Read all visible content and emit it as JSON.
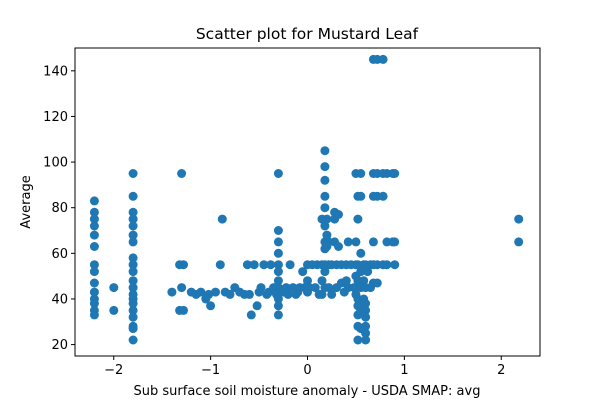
{
  "chart_data": {
    "type": "scatter",
    "title": "Scatter plot for Mustard Leaf",
    "xlabel": "Sub surface soil moisture anomaly - USDA SMAP: avg",
    "ylabel": "Average",
    "xlim": [
      -2.4,
      2.4
    ],
    "ylim": [
      15,
      150
    ],
    "xticks": [
      -2,
      -1,
      0,
      1,
      2
    ],
    "xtick_labels": [
      "−2",
      "−1",
      "0",
      "1",
      "2"
    ],
    "yticks": [
      20,
      40,
      60,
      80,
      100,
      120,
      140
    ],
    "ytick_labels": [
      "20",
      "40",
      "60",
      "80",
      "100",
      "120",
      "140"
    ],
    "grid": false,
    "legend": "none",
    "point_color": "#1f77b4",
    "points": [
      [
        -2.2,
        83
      ],
      [
        -2.2,
        78
      ],
      [
        -2.2,
        75
      ],
      [
        -2.2,
        72
      ],
      [
        -2.2,
        68
      ],
      [
        -2.2,
        63
      ],
      [
        -2.2,
        55
      ],
      [
        -2.2,
        52
      ],
      [
        -2.2,
        47
      ],
      [
        -2.2,
        43
      ],
      [
        -2.2,
        40
      ],
      [
        -2.2,
        38
      ],
      [
        -2.2,
        35
      ],
      [
        -2.2,
        33
      ],
      [
        -2.0,
        45
      ],
      [
        -2.0,
        35
      ],
      [
        -1.8,
        95
      ],
      [
        -1.8,
        85
      ],
      [
        -1.8,
        78
      ],
      [
        -1.8,
        75
      ],
      [
        -1.8,
        72
      ],
      [
        -1.8,
        68
      ],
      [
        -1.8,
        65
      ],
      [
        -1.8,
        58
      ],
      [
        -1.8,
        55
      ],
      [
        -1.8,
        52
      ],
      [
        -1.8,
        48
      ],
      [
        -1.8,
        45
      ],
      [
        -1.8,
        42
      ],
      [
        -1.8,
        40
      ],
      [
        -1.8,
        38
      ],
      [
        -1.8,
        35
      ],
      [
        -1.8,
        32
      ],
      [
        -1.8,
        28
      ],
      [
        -1.8,
        27
      ],
      [
        -1.8,
        22
      ],
      [
        -1.4,
        43
      ],
      [
        -1.3,
        95
      ],
      [
        -1.32,
        55
      ],
      [
        -1.28,
        55
      ],
      [
        -1.3,
        45
      ],
      [
        -1.32,
        35
      ],
      [
        -1.28,
        35
      ],
      [
        -1.2,
        43
      ],
      [
        -1.15,
        42
      ],
      [
        -1.1,
        43
      ],
      [
        -1.05,
        40
      ],
      [
        -1.02,
        42
      ],
      [
        -1.0,
        37
      ],
      [
        -0.95,
        43
      ],
      [
        -0.9,
        55
      ],
      [
        -0.88,
        75
      ],
      [
        -0.85,
        43
      ],
      [
        -0.8,
        42
      ],
      [
        -0.75,
        45
      ],
      [
        -0.7,
        43
      ],
      [
        -0.65,
        42
      ],
      [
        -0.62,
        55
      ],
      [
        -0.6,
        42
      ],
      [
        -0.58,
        33
      ],
      [
        -0.55,
        55
      ],
      [
        -0.52,
        37
      ],
      [
        -0.5,
        43
      ],
      [
        -0.48,
        45
      ],
      [
        -0.45,
        55
      ],
      [
        -0.42,
        42
      ],
      [
        -0.4,
        43
      ],
      [
        -0.38,
        55
      ],
      [
        -0.35,
        45
      ],
      [
        -0.32,
        42
      ],
      [
        -0.3,
        95
      ],
      [
        -0.3,
        70
      ],
      [
        -0.3,
        65
      ],
      [
        -0.3,
        60
      ],
      [
        -0.3,
        55
      ],
      [
        -0.3,
        52
      ],
      [
        -0.3,
        48
      ],
      [
        -0.3,
        45
      ],
      [
        -0.3,
        40
      ],
      [
        -0.3,
        37
      ],
      [
        -0.3,
        33
      ],
      [
        -0.28,
        43
      ],
      [
        -0.25,
        43
      ],
      [
        -0.22,
        45
      ],
      [
        -0.2,
        42
      ],
      [
        -0.18,
        55
      ],
      [
        -0.15,
        45
      ],
      [
        -0.12,
        42
      ],
      [
        -0.1,
        43
      ],
      [
        -0.08,
        45
      ],
      [
        -0.05,
        52
      ],
      [
        -0.03,
        45
      ],
      [
        0.0,
        43
      ],
      [
        0.0,
        48
      ],
      [
        0.0,
        55
      ],
      [
        0.02,
        45
      ],
      [
        0.05,
        55
      ],
      [
        0.08,
        45
      ],
      [
        0.1,
        55
      ],
      [
        0.12,
        42
      ],
      [
        0.15,
        75
      ],
      [
        0.15,
        55
      ],
      [
        0.15,
        48
      ],
      [
        0.15,
        42
      ],
      [
        0.18,
        105
      ],
      [
        0.18,
        98
      ],
      [
        0.18,
        92
      ],
      [
        0.18,
        85
      ],
      [
        0.18,
        80
      ],
      [
        0.18,
        72
      ],
      [
        0.18,
        65
      ],
      [
        0.18,
        62
      ],
      [
        0.18,
        55
      ],
      [
        0.18,
        52
      ],
      [
        0.18,
        45
      ],
      [
        0.2,
        75
      ],
      [
        0.2,
        68
      ],
      [
        0.2,
        63
      ],
      [
        0.22,
        65
      ],
      [
        0.22,
        55
      ],
      [
        0.22,
        45
      ],
      [
        0.25,
        55
      ],
      [
        0.25,
        42
      ],
      [
        0.28,
        78
      ],
      [
        0.28,
        75
      ],
      [
        0.28,
        65
      ],
      [
        0.3,
        55
      ],
      [
        0.3,
        45
      ],
      [
        0.32,
        77
      ],
      [
        0.32,
        63
      ],
      [
        0.35,
        55
      ],
      [
        0.35,
        47
      ],
      [
        0.38,
        43
      ],
      [
        0.4,
        55
      ],
      [
        0.4,
        48
      ],
      [
        0.42,
        65
      ],
      [
        0.42,
        45
      ],
      [
        0.45,
        55
      ],
      [
        0.48,
        45
      ],
      [
        0.5,
        95
      ],
      [
        0.5,
        65
      ],
      [
        0.5,
        55
      ],
      [
        0.5,
        50
      ],
      [
        0.5,
        45
      ],
      [
        0.5,
        42
      ],
      [
        0.52,
        85
      ],
      [
        0.52,
        75
      ],
      [
        0.52,
        55
      ],
      [
        0.52,
        48
      ],
      [
        0.52,
        40
      ],
      [
        0.52,
        37
      ],
      [
        0.52,
        33
      ],
      [
        0.52,
        28
      ],
      [
        0.52,
        22
      ],
      [
        0.55,
        95
      ],
      [
        0.55,
        85
      ],
      [
        0.55,
        60
      ],
      [
        0.55,
        52
      ],
      [
        0.55,
        45
      ],
      [
        0.55,
        35
      ],
      [
        0.55,
        27
      ],
      [
        0.58,
        55
      ],
      [
        0.58,
        48
      ],
      [
        0.58,
        40
      ],
      [
        0.6,
        55
      ],
      [
        0.6,
        45
      ],
      [
        0.6,
        38
      ],
      [
        0.6,
        35
      ],
      [
        0.6,
        32
      ],
      [
        0.6,
        28
      ],
      [
        0.6,
        25
      ],
      [
        0.6,
        22
      ],
      [
        0.62,
        52
      ],
      [
        0.65,
        55
      ],
      [
        0.65,
        45
      ],
      [
        0.68,
        145
      ],
      [
        0.68,
        95
      ],
      [
        0.68,
        85
      ],
      [
        0.68,
        65
      ],
      [
        0.68,
        55
      ],
      [
        0.68,
        47
      ],
      [
        0.72,
        145
      ],
      [
        0.72,
        95
      ],
      [
        0.72,
        85
      ],
      [
        0.72,
        55
      ],
      [
        0.72,
        47
      ],
      [
        0.78,
        145
      ],
      [
        0.78,
        95
      ],
      [
        0.78,
        85
      ],
      [
        0.78,
        55
      ],
      [
        0.82,
        95
      ],
      [
        0.82,
        65
      ],
      [
        0.82,
        55
      ],
      [
        0.88,
        95
      ],
      [
        0.88,
        65
      ],
      [
        0.9,
        95
      ],
      [
        0.9,
        65
      ],
      [
        0.9,
        55
      ],
      [
        2.18,
        75
      ],
      [
        2.18,
        65
      ]
    ]
  }
}
